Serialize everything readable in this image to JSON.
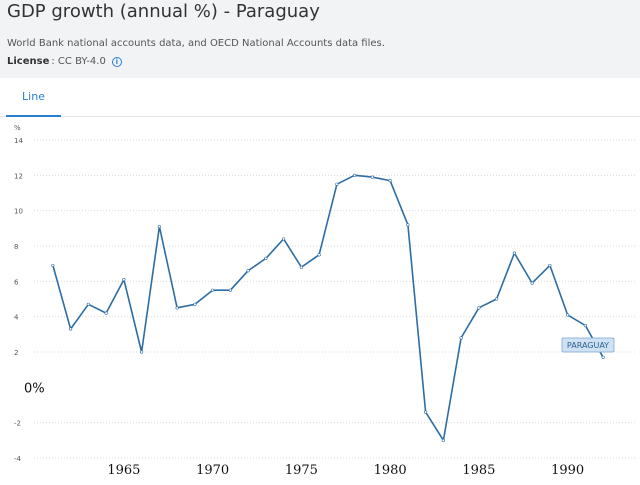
{
  "header": {
    "title": "GDP growth (annual %) - Paraguay",
    "source": "World Bank national accounts data, and OECD National Accounts data files.",
    "license_label": "License",
    "license_value": ": CC BY-4.0",
    "info_icon": "info-icon"
  },
  "tabs": [
    {
      "label": "Line",
      "active": true
    }
  ],
  "colors": {
    "accent": "#2a7fd4",
    "series": "#2e6da4",
    "grid": "#d9d9d9"
  },
  "chart_data": {
    "type": "line",
    "ylabel": "%",
    "ylim": [
      -4,
      14
    ],
    "yticks": [
      14,
      12,
      10,
      8,
      6,
      4,
      2,
      -2,
      -4
    ],
    "zero_label": "0%",
    "xlim": [
      1960.5,
      1992.5
    ],
    "xticks": [
      1965,
      1970,
      1975,
      1980,
      1985,
      1990
    ],
    "grid": true,
    "series": [
      {
        "name": "PARAGUAY",
        "x": [
          1961,
          1962,
          1963,
          1964,
          1965,
          1966,
          1967,
          1968,
          1969,
          1970,
          1971,
          1972,
          1973,
          1974,
          1975,
          1976,
          1977,
          1978,
          1979,
          1980,
          1981,
          1982,
          1983,
          1984,
          1985,
          1986,
          1987,
          1988,
          1989,
          1990,
          1991,
          1992
        ],
        "values": [
          6.9,
          3.3,
          4.7,
          4.2,
          6.1,
          2.0,
          9.1,
          4.5,
          4.7,
          5.5,
          5.5,
          6.6,
          7.3,
          8.4,
          6.8,
          7.5,
          11.5,
          12.0,
          11.9,
          11.7,
          9.2,
          -1.4,
          -3.0,
          2.8,
          4.5,
          5.0,
          7.6,
          5.9,
          6.9,
          4.1,
          3.5,
          1.7
        ]
      }
    ]
  }
}
